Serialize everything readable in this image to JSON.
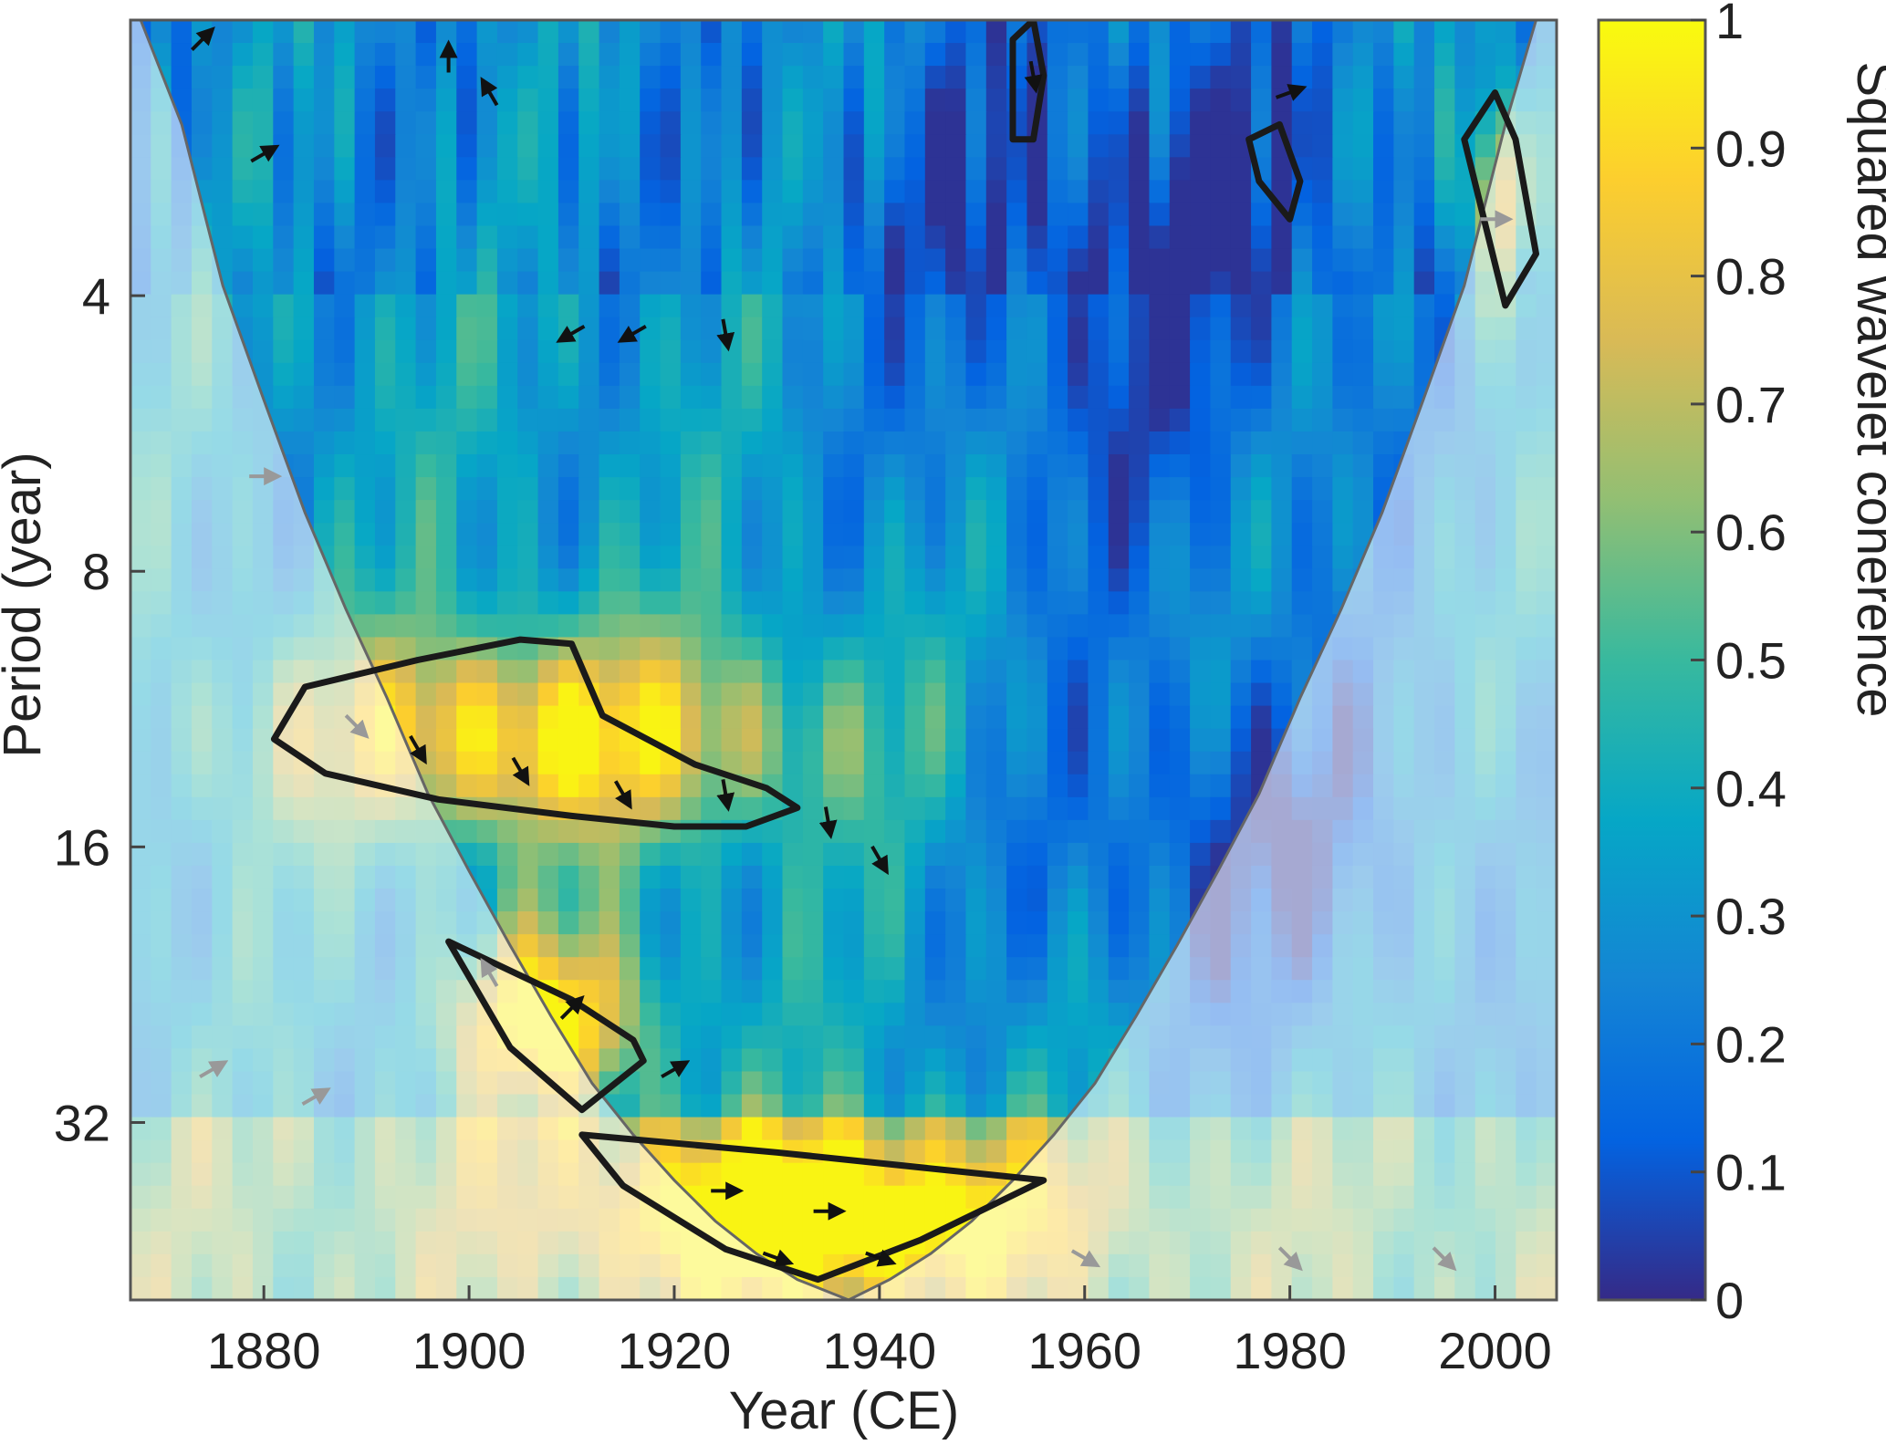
{
  "chart_data": {
    "type": "heatmap",
    "title": "",
    "xlabel": "Year (CE)",
    "ylabel": "Period (year)",
    "xlim": [
      1867,
      2006
    ],
    "ylim": [
      2,
      50
    ],
    "y_scale": "log2",
    "y_inverted": true,
    "x_ticks": [
      1880,
      1900,
      1920,
      1940,
      1960,
      1980,
      2000
    ],
    "y_ticks": [
      4,
      8,
      16,
      32
    ],
    "colorbar": {
      "label": "Squared wavelet coherence",
      "range": [
        0,
        1
      ],
      "ticks": [
        0,
        0.1,
        0.2,
        0.3,
        0.4,
        0.5,
        0.6,
        0.7,
        0.8,
        0.9,
        1
      ],
      "colormap": "parula",
      "colors": [
        "#352a87",
        "#0363e1",
        "#1485d4",
        "#06a7c6",
        "#38b99e",
        "#92bf73",
        "#d9ba56",
        "#fcce2e",
        "#f9fb0e"
      ]
    },
    "cone_of_influence": {
      "x": [
        1868,
        1872,
        1876,
        1880,
        1884,
        1888,
        1892,
        1896,
        1900,
        1904,
        1908,
        1912,
        1916,
        1920,
        1924,
        1928,
        1932,
        1937,
        1941,
        1945,
        1949,
        1953,
        1957,
        1961,
        1965,
        1969,
        1973,
        1977,
        1981,
        1985,
        1989,
        1993,
        1997,
        2001,
        2004
      ],
      "period": [
        2.0,
        2.6,
        3.9,
        5.2,
        6.9,
        8.8,
        11.0,
        14.0,
        17.0,
        20.5,
        24.5,
        29.0,
        33.0,
        37.0,
        41.0,
        44.5,
        47.5,
        50.0,
        47.5,
        44.5,
        41.0,
        37.0,
        33.0,
        29.0,
        24.5,
        20.5,
        17.0,
        14.0,
        11.0,
        8.8,
        6.9,
        5.2,
        3.9,
        2.6,
        2.0
      ]
    },
    "significance_regions": [
      {
        "x": [
          1884,
          1895,
          1905,
          1910,
          1913,
          1922,
          1929,
          1932,
          1927,
          1920,
          1910,
          1897,
          1886,
          1881,
          1884
        ],
        "period": [
          10.7,
          10.0,
          9.5,
          9.6,
          11.5,
          13.0,
          13.8,
          14.5,
          15.2,
          15.2,
          14.8,
          14.2,
          13.3,
          12.2,
          10.7
        ]
      },
      {
        "x": [
          1898,
          1910,
          1916,
          1917,
          1911,
          1904,
          1898
        ],
        "period": [
          20.3,
          23.5,
          26.0,
          27.4,
          31.0,
          26.5,
          20.3
        ]
      },
      {
        "x": [
          1911,
          1930,
          1956,
          1944,
          1934,
          1925,
          1915,
          1911
        ],
        "period": [
          33.0,
          34.5,
          37.0,
          43.0,
          47.5,
          44.0,
          37.5,
          33.0
        ]
      },
      {
        "x": [
          1953,
          1955,
          1956,
          1955,
          1953,
          1953
        ],
        "period": [
          2.1,
          2.0,
          2.3,
          2.7,
          2.7,
          2.1
        ]
      },
      {
        "x": [
          1976,
          1979,
          1981,
          1980,
          1977,
          1976
        ],
        "period": [
          2.7,
          2.6,
          3.0,
          3.3,
          3.0,
          2.7
        ]
      },
      {
        "x": [
          1997,
          2000,
          2002,
          2004,
          2001,
          1997
        ],
        "period": [
          2.7,
          2.4,
          2.7,
          3.6,
          4.1,
          2.7
        ]
      }
    ],
    "coherence_summary": {
      "high_coherence": [
        {
          "x_range": [
            1881,
            1932
          ],
          "period_range": [
            9.5,
            15.5
          ]
        },
        {
          "x_range": [
            1898,
            1917
          ],
          "period_range": [
            20,
            31
          ]
        },
        {
          "x_range": [
            1911,
            1956
          ],
          "period_range": [
            33,
            50
          ]
        },
        {
          "x_range": [
            1997,
            2004
          ],
          "period_range": [
            2.4,
            4.1
          ]
        }
      ],
      "low_coherence": [
        {
          "x_range": [
            1940,
            1990
          ],
          "period_range": [
            2,
            8
          ]
        },
        {
          "x_range": [
            1955,
            1995
          ],
          "period_range": [
            10,
            26
          ]
        }
      ]
    },
    "phase_arrows": [
      {
        "x": 1874,
        "period": 2.1,
        "angle": 45
      },
      {
        "x": 1880,
        "period": 2.8,
        "angle": 30
      },
      {
        "x": 1898,
        "period": 2.2,
        "angle": 90
      },
      {
        "x": 1902,
        "period": 2.4,
        "angle": 120
      },
      {
        "x": 1910,
        "period": 4.4,
        "angle": 210
      },
      {
        "x": 1916,
        "period": 4.4,
        "angle": 210
      },
      {
        "x": 1925,
        "period": 4.4,
        "angle": 280
      },
      {
        "x": 1880,
        "period": 6.3,
        "angle": 0
      },
      {
        "x": 1889,
        "period": 11.8,
        "angle": -45
      },
      {
        "x": 1895,
        "period": 12.5,
        "angle": -60
      },
      {
        "x": 1905,
        "period": 13.2,
        "angle": -60
      },
      {
        "x": 1915,
        "period": 14.0,
        "angle": -60
      },
      {
        "x": 1925,
        "period": 14.0,
        "angle": -80
      },
      {
        "x": 1935,
        "period": 15.0,
        "angle": -80
      },
      {
        "x": 1940,
        "period": 16.5,
        "angle": -60
      },
      {
        "x": 1902,
        "period": 22.0,
        "angle": 120
      },
      {
        "x": 1910,
        "period": 24.0,
        "angle": 45
      },
      {
        "x": 1920,
        "period": 28.0,
        "angle": 30
      },
      {
        "x": 1925,
        "period": 38.0,
        "angle": 0
      },
      {
        "x": 1935,
        "period": 40.0,
        "angle": 0
      },
      {
        "x": 1930,
        "period": 45.0,
        "angle": -20
      },
      {
        "x": 1940,
        "period": 45.0,
        "angle": -20
      },
      {
        "x": 1960,
        "period": 45.0,
        "angle": -30
      },
      {
        "x": 1980,
        "period": 45.0,
        "angle": -45
      },
      {
        "x": 1995,
        "period": 45.0,
        "angle": -45
      },
      {
        "x": 1875,
        "period": 28.0,
        "angle": 30
      },
      {
        "x": 1885,
        "period": 30.0,
        "angle": 30
      },
      {
        "x": 1955,
        "period": 2.3,
        "angle": -80
      },
      {
        "x": 1980,
        "period": 2.4,
        "angle": 20
      },
      {
        "x": 2000,
        "period": 3.3,
        "angle": 0
      }
    ]
  }
}
